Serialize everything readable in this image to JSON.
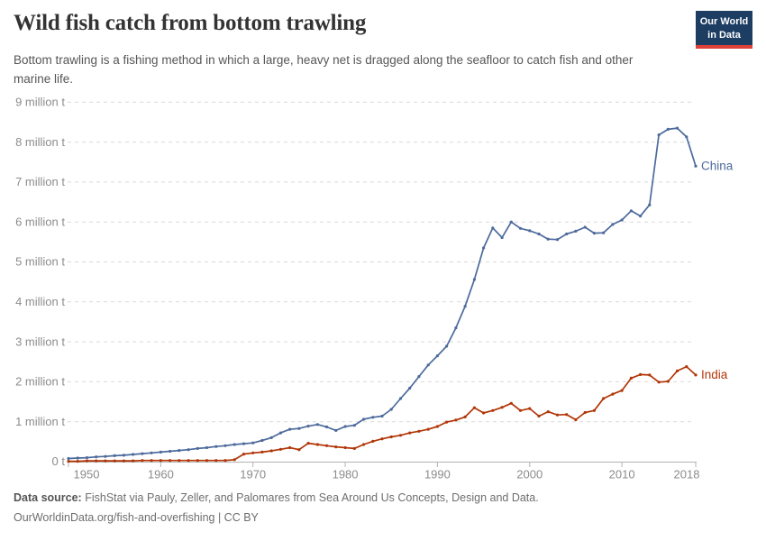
{
  "header": {
    "title": "Wild fish catch from bottom trawling",
    "subtitle": "Bottom trawling is a fishing method in which a large, heavy net is dragged along the seafloor to catch fish and other marine life.",
    "logo": {
      "line1": "Our World",
      "line2": "in Data"
    }
  },
  "footer": {
    "datasource_label": "Data source:",
    "datasource_text": " FishStat via Pauly, Zeller, and Palomares from Sea Around Us Concepts, Design and Data.",
    "link_line": "OurWorldinData.org/fish-and-overfishing | CC BY"
  },
  "colors": {
    "axis_text": "#8c8c8c",
    "grid": "#d9d9d9",
    "baseline": "#b3b3b3",
    "logo_bg": "#1d3d63",
    "logo_accent": "#e0403a",
    "title_text": "#333333",
    "subtitle_text": "#565656"
  },
  "chart_data": {
    "type": "line",
    "title": "Wild fish catch from bottom trawling",
    "unit": "million tonnes",
    "grid": "horizontal-dashed",
    "legend": "end-of-line-labels",
    "xlim": [
      1950,
      2018
    ],
    "ylim": [
      0,
      9
    ],
    "x_ticks": [
      1950,
      1960,
      1970,
      1980,
      1990,
      2000,
      2010,
      2018
    ],
    "y_ticks": [
      {
        "value": 0,
        "label": "0 t"
      },
      {
        "value": 1,
        "label": "1 million t"
      },
      {
        "value": 2,
        "label": "2 million t"
      },
      {
        "value": 3,
        "label": "3 million t"
      },
      {
        "value": 4,
        "label": "4 million t"
      },
      {
        "value": 5,
        "label": "5 million t"
      },
      {
        "value": 6,
        "label": "6 million t"
      },
      {
        "value": 7,
        "label": "7 million t"
      },
      {
        "value": 8,
        "label": "8 million t"
      },
      {
        "value": 9,
        "label": "9 million t"
      }
    ],
    "x": [
      1950,
      1951,
      1952,
      1953,
      1954,
      1955,
      1956,
      1957,
      1958,
      1959,
      1960,
      1961,
      1962,
      1963,
      1964,
      1965,
      1966,
      1967,
      1968,
      1969,
      1970,
      1971,
      1972,
      1973,
      1974,
      1975,
      1976,
      1977,
      1978,
      1979,
      1980,
      1981,
      1982,
      1983,
      1984,
      1985,
      1986,
      1987,
      1988,
      1989,
      1990,
      1991,
      1992,
      1993,
      1994,
      1995,
      1996,
      1997,
      1998,
      1999,
      2000,
      2001,
      2002,
      2003,
      2004,
      2005,
      2006,
      2007,
      2008,
      2009,
      2010,
      2011,
      2012,
      2013,
      2014,
      2015,
      2016,
      2017,
      2018
    ],
    "series": [
      {
        "name": "China",
        "color": "#4C6A9C",
        "values": [
          0.08,
          0.09,
          0.1,
          0.12,
          0.13,
          0.15,
          0.16,
          0.18,
          0.2,
          0.22,
          0.24,
          0.26,
          0.28,
          0.3,
          0.33,
          0.35,
          0.38,
          0.4,
          0.43,
          0.45,
          0.47,
          0.53,
          0.6,
          0.72,
          0.81,
          0.83,
          0.89,
          0.93,
          0.87,
          0.78,
          0.88,
          0.91,
          1.06,
          1.11,
          1.14,
          1.31,
          1.58,
          1.84,
          2.13,
          2.42,
          2.65,
          2.89,
          3.35,
          3.89,
          4.56,
          5.35,
          5.85,
          5.61,
          6.0,
          5.84,
          5.78,
          5.7,
          5.57,
          5.56,
          5.7,
          5.77,
          5.87,
          5.72,
          5.73,
          5.94,
          6.05,
          6.28,
          6.15,
          6.43,
          8.18,
          8.32,
          8.35,
          8.13,
          7.4
        ]
      },
      {
        "name": "India",
        "color": "#B13507",
        "values": [
          0.01,
          0.01,
          0.02,
          0.02,
          0.02,
          0.02,
          0.02,
          0.02,
          0.03,
          0.03,
          0.03,
          0.03,
          0.03,
          0.03,
          0.03,
          0.03,
          0.03,
          0.03,
          0.05,
          0.19,
          0.22,
          0.24,
          0.27,
          0.31,
          0.35,
          0.3,
          0.46,
          0.43,
          0.4,
          0.37,
          0.35,
          0.33,
          0.43,
          0.51,
          0.57,
          0.62,
          0.66,
          0.72,
          0.76,
          0.81,
          0.88,
          0.99,
          1.04,
          1.12,
          1.35,
          1.22,
          1.28,
          1.36,
          1.46,
          1.28,
          1.33,
          1.14,
          1.25,
          1.17,
          1.18,
          1.05,
          1.23,
          1.28,
          1.58,
          1.69,
          1.78,
          2.09,
          2.18,
          2.17,
          1.99,
          2.01,
          2.27,
          2.38,
          2.17
        ]
      }
    ]
  }
}
